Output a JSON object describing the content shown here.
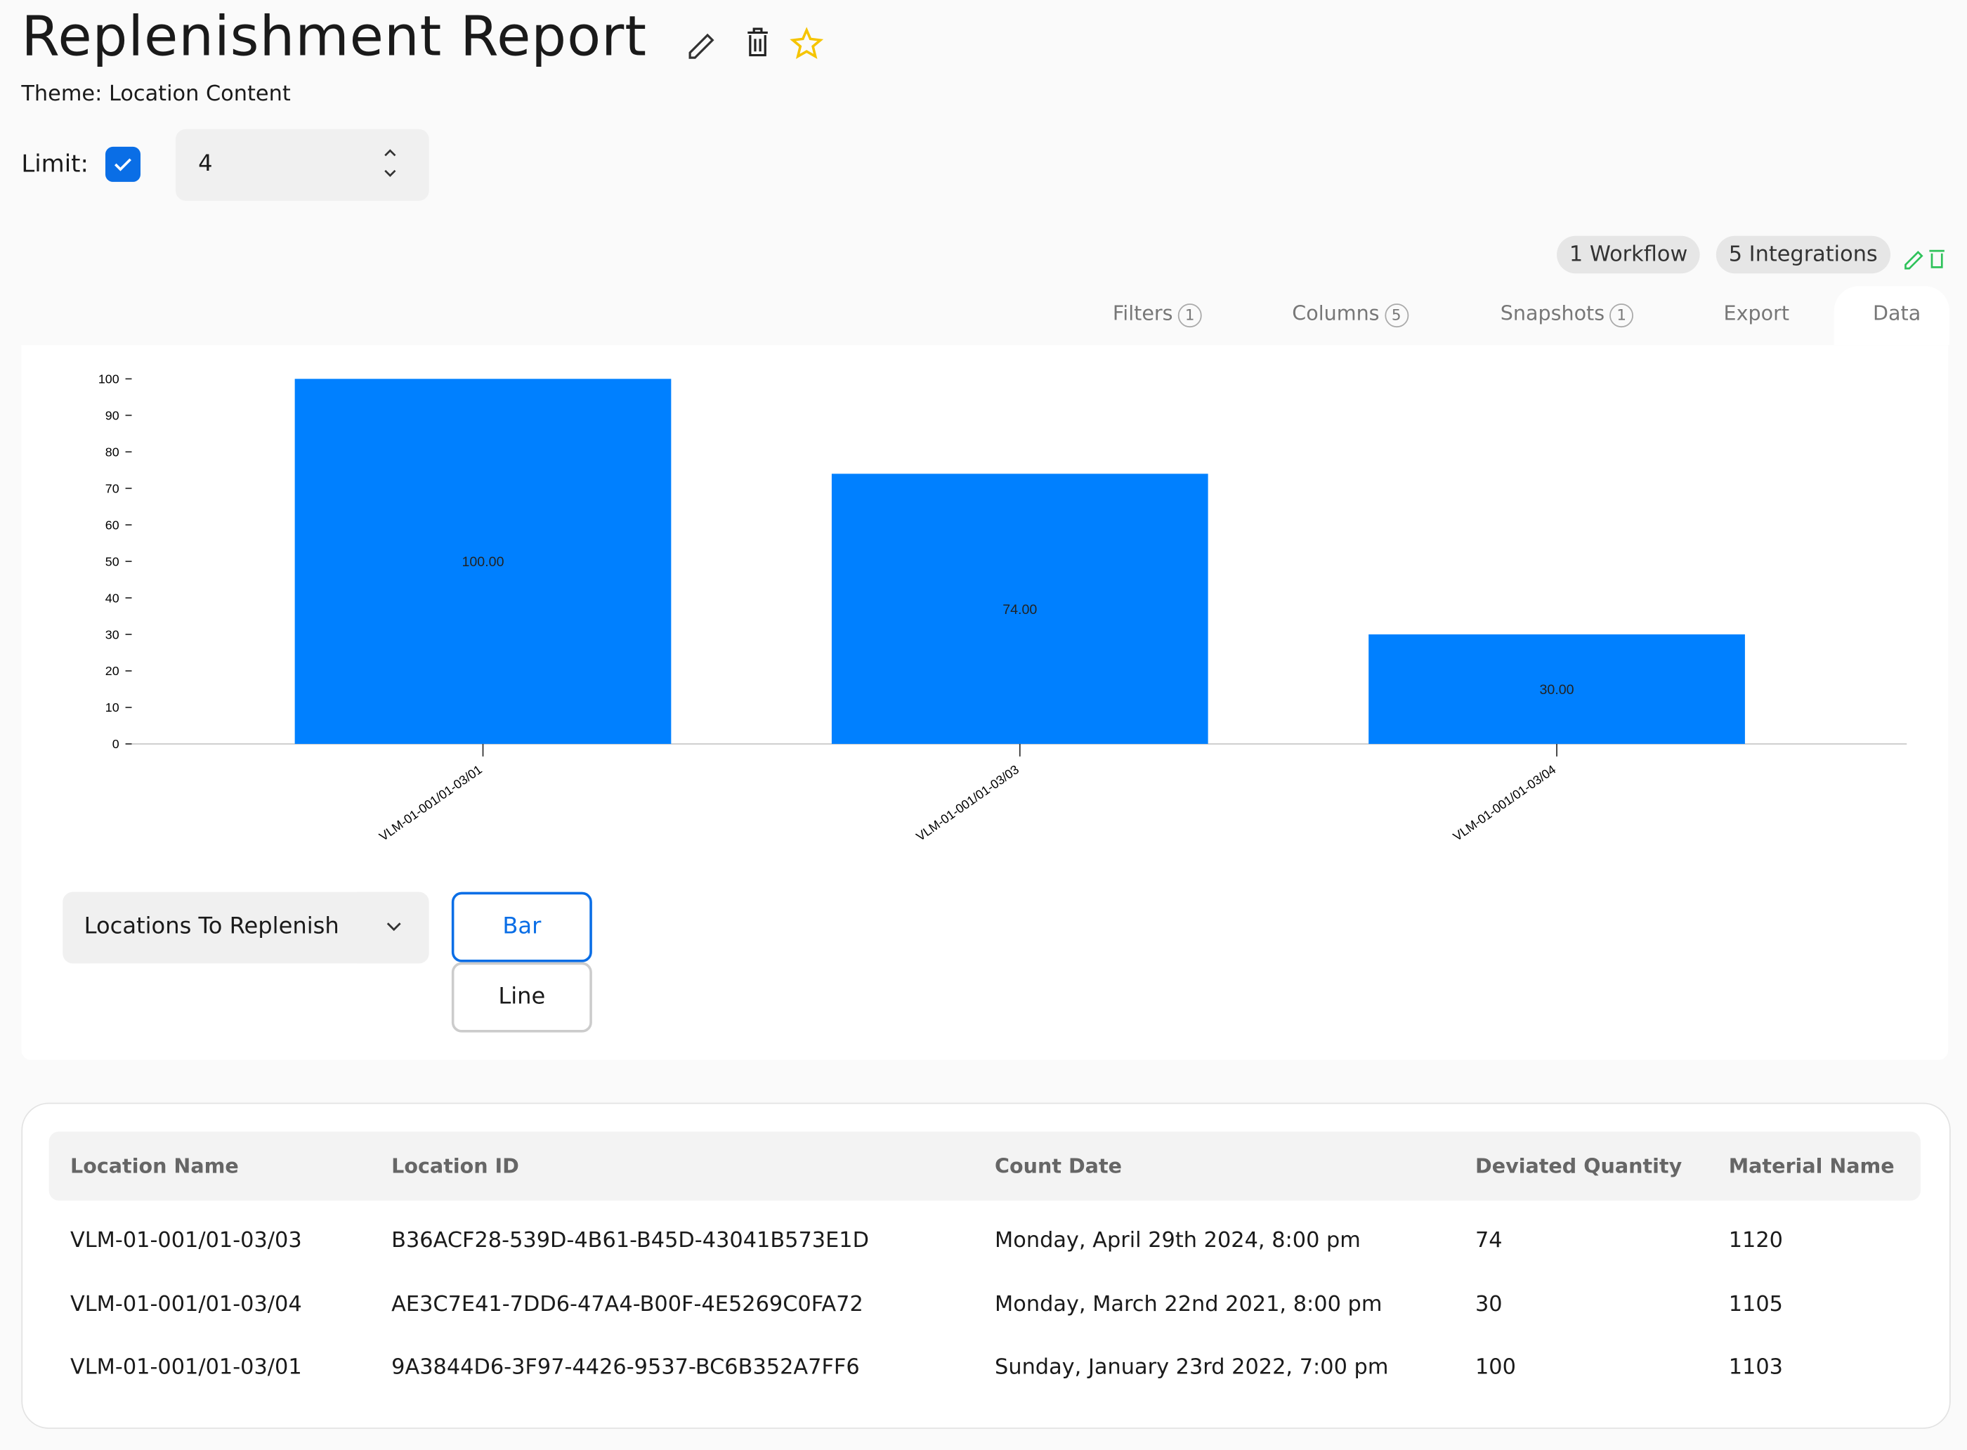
{
  "header": {
    "title": "Replenishment Report",
    "theme": "Theme: Location Content"
  },
  "limit": {
    "label": "Limit:",
    "value": 4
  },
  "badges": [
    "1 Workflow",
    "5 Integrations"
  ],
  "tabs": [
    {
      "label": "Filters",
      "count": 1
    },
    {
      "label": "Columns",
      "count": 5
    },
    {
      "label": "Snapshots",
      "count": 1
    },
    {
      "label": "Export"
    },
    {
      "label": "Data"
    }
  ],
  "chart_data": {
    "type": "bar",
    "categories": [
      "VLM-01-001/01-03/01",
      "VLM-01-001/01-03/03",
      "VLM-01-001/01-03/04"
    ],
    "values": [
      100,
      74,
      30
    ],
    "value_labels": [
      "100.00",
      "74.00",
      "30.00"
    ],
    "color": "#0080ff",
    "ylim": [
      0,
      100
    ],
    "yticks": [
      0,
      10,
      20,
      30,
      40,
      50,
      60,
      70,
      80,
      90,
      100
    ]
  },
  "chart_controls": {
    "dataset": "Locations To Replenish",
    "types": [
      "Bar",
      "Line"
    ]
  },
  "table": {
    "columns": [
      "Location Name",
      "Location ID",
      "Count Date",
      "Deviated Quantity",
      "Material Name"
    ],
    "rows": [
      [
        "VLM-01-001/01-03/03",
        "B36ACF28-539D-4B61-B45D-43041B573E1D",
        "Monday, April 29th 2024, 8:00 pm",
        74,
        1120
      ],
      [
        "VLM-01-001/01-03/04",
        "AE3C7E41-7DD6-47A4-B00F-4E5269C0FA72",
        "Monday, March 22nd 2021, 8:00 pm",
        30,
        1105
      ],
      [
        "VLM-01-001/01-03/01",
        "9A3844D6-3F97-4426-9537-BC6B352A7FF6",
        "Sunday, January 23rd 2022, 7:00 pm",
        100,
        1103
      ]
    ]
  }
}
